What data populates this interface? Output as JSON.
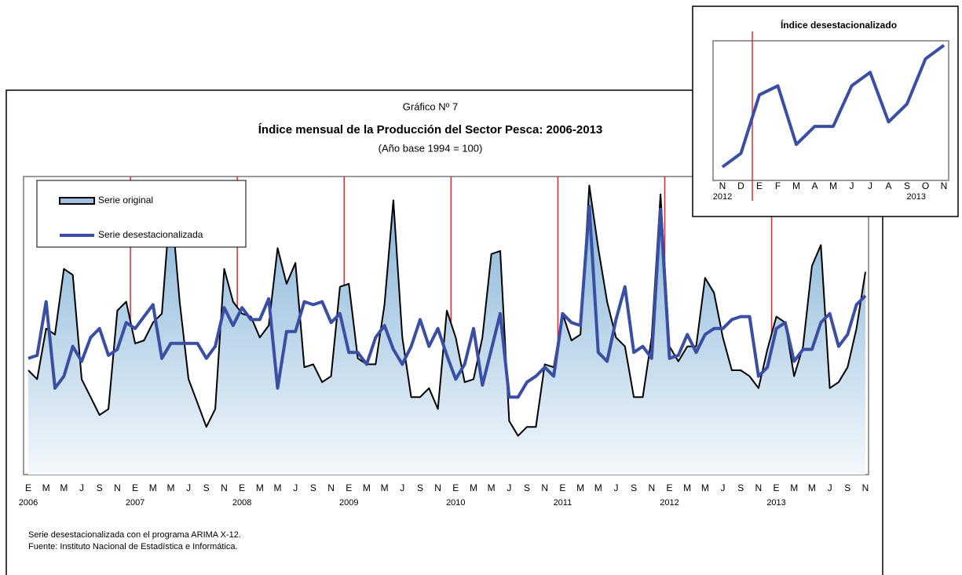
{
  "chart_data": [
    {
      "type": "line",
      "caption": "Gráfico Nº 7",
      "title": "Índice mensual de la Producción del Sector Pesca: 2006-2013",
      "subtitle": "(Año base 1994 = 100)",
      "categories": [
        "E",
        null,
        "M",
        null,
        "M",
        null,
        "J",
        null,
        "S",
        null,
        "N",
        null,
        "E",
        null,
        "M",
        null,
        "M",
        null,
        "J",
        null,
        "S",
        null,
        "N",
        null,
        "E",
        null,
        "M",
        null,
        "M",
        null,
        "J",
        null,
        "S",
        null,
        "N",
        null,
        "E",
        null,
        "M",
        null,
        "M",
        null,
        "J",
        null,
        "S",
        null,
        "N",
        null,
        "E",
        null,
        "M",
        null,
        "M",
        null,
        "J",
        null,
        "S",
        null,
        "N",
        null,
        "E",
        null,
        "M",
        null,
        "M",
        null,
        "J",
        null,
        "S",
        null,
        "N",
        null,
        "E",
        null,
        "M",
        null,
        "M",
        null,
        "J",
        null,
        "S",
        null,
        "N",
        null,
        "E",
        null,
        "M",
        null,
        "M",
        null,
        "J",
        null,
        "S",
        null,
        "N"
      ],
      "year_labels": [
        "2006",
        "2007",
        "2008",
        "2009",
        "2010",
        "2011",
        "2012",
        "2013"
      ],
      "series": [
        {
          "name": "Serie original",
          "color": "#000000",
          "fill": "#9fc3de",
          "values": [
            35,
            32,
            49,
            47,
            69,
            67,
            32,
            26,
            20,
            22,
            55,
            58,
            44,
            45,
            51,
            54,
            93,
            58,
            32,
            24,
            16,
            22,
            69,
            58,
            54,
            53,
            46,
            50,
            76,
            64,
            71,
            36,
            37,
            31,
            33,
            63,
            64,
            39,
            37,
            37,
            57,
            92,
            46,
            26,
            26,
            29,
            22,
            55,
            46,
            31,
            32,
            46,
            74,
            75,
            18,
            13,
            16,
            16,
            37,
            36,
            54,
            45,
            47,
            97,
            76,
            58,
            46,
            43,
            26,
            26,
            46,
            94,
            43,
            38,
            43,
            43,
            66,
            61,
            46,
            35,
            35,
            33,
            29,
            42,
            53,
            51,
            33,
            43,
            70,
            77,
            29,
            31,
            36,
            49,
            68
          ]
        },
        {
          "name": "Serie desestacionalizada",
          "color": "#3a4fa3",
          "values": [
            39,
            40,
            58,
            29,
            33,
            43,
            38,
            46,
            49,
            40,
            42,
            51,
            49,
            53,
            57,
            39,
            44,
            44,
            44,
            44,
            39,
            43,
            56,
            50,
            56,
            52,
            52,
            59,
            29,
            48,
            48,
            58,
            57,
            58,
            51,
            54,
            41,
            41,
            37,
            46,
            50,
            42,
            37,
            43,
            52,
            43,
            49,
            40,
            32,
            37,
            49,
            30,
            42,
            54,
            26,
            26,
            31,
            33,
            36,
            33,
            54,
            51,
            50,
            90,
            41,
            38,
            52,
            63,
            41,
            43,
            39,
            89,
            39,
            40,
            47,
            41,
            47,
            49,
            49,
            52,
            53,
            53,
            33,
            36,
            49,
            51,
            38,
            42,
            42,
            51,
            54,
            43,
            47,
            57,
            60
          ]
        }
      ],
      "ylim": [
        0,
        100
      ],
      "notes": [
        "Serie desestacionalizada con el programa ARIMA X-12.",
        "Fuente: Instituto Nacional de Estadística e Informática."
      ]
    },
    {
      "type": "line",
      "title": "Índice desestacionalizado",
      "categories": [
        "N",
        "D",
        "E",
        "F",
        "M",
        "A",
        "M",
        "J",
        "J",
        "A",
        "S",
        "O",
        "N"
      ],
      "year_labels": [
        "2012",
        "2013"
      ],
      "series": [
        {
          "color": "#3a4fa3",
          "values": [
            33,
            36,
            49,
            51,
            38,
            42,
            42,
            51,
            54,
            43,
            47,
            57,
            60
          ]
        }
      ],
      "ylim": [
        30,
        61
      ]
    }
  ]
}
